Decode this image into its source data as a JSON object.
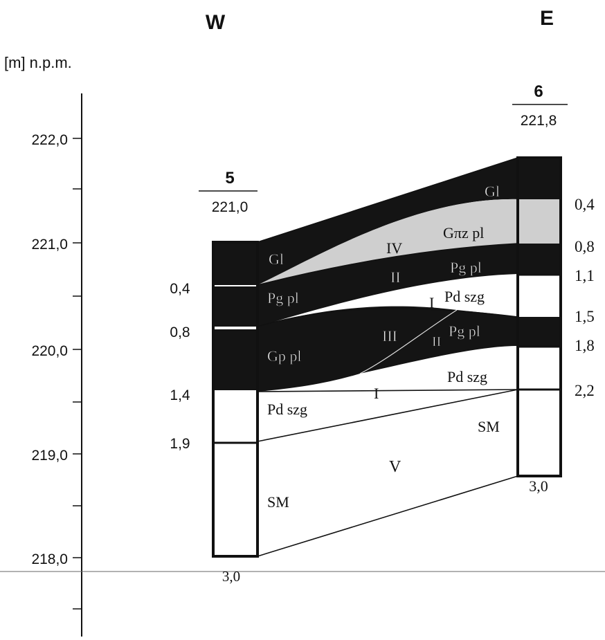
{
  "directions": {
    "west": "W",
    "east": "E"
  },
  "axis": {
    "unit_label": "[m] n.p.m.",
    "ticks": [
      "222,0",
      "221,0",
      "220,0",
      "219,0",
      "218,0"
    ]
  },
  "boreholes": {
    "left": {
      "number": "5",
      "elevation": "221,0",
      "depth_labels": [
        "0,4",
        "0,8",
        "1,4",
        "1,9"
      ],
      "bottom": "3,0"
    },
    "right": {
      "number": "6",
      "elevation": "221,8",
      "depth_labels": [
        "0,4",
        "0,8",
        "1,1",
        "1,5",
        "1,8",
        "2,2"
      ],
      "bottom": "3,0"
    }
  },
  "layers": {
    "gl_left": "Gl",
    "gl_right": "Gl",
    "iv": "IV",
    "gpz_pl": "Gπz pl",
    "ii_top": "II",
    "pg_pl_right_top": "Pg pl",
    "pg_pl_left": "Pg pl",
    "i_small": "I",
    "pd_szg_top": "Pd szg",
    "iii": "III",
    "ii_lower": "II",
    "pg_pl_right_lower": "Pg pl",
    "gp_pl": "Gp pl",
    "pd_szg_right": "Pd szg",
    "i_main": "I",
    "pd_szg_left": "Pd szg",
    "sm_right": "SM",
    "v": "V",
    "sm_left": "SM"
  },
  "colors": {
    "dark_fill": "#141414",
    "light_fill": "#d0d0d0",
    "white_fill": "#ffffff",
    "line": "#111111"
  }
}
